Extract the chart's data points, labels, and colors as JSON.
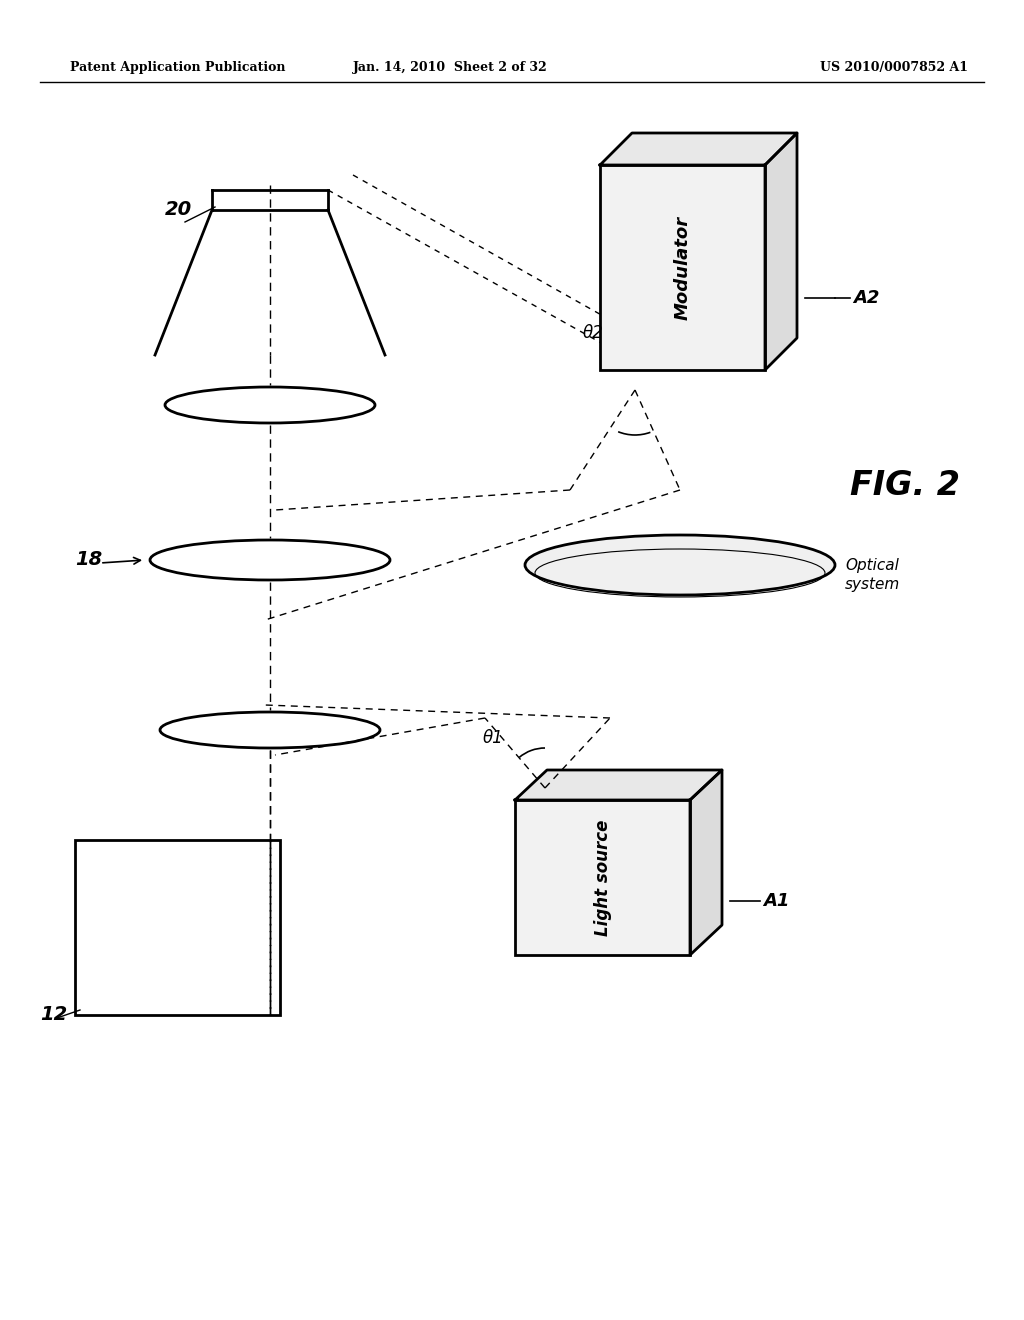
{
  "bg_color": "#ffffff",
  "header_left": "Patent Application Publication",
  "header_mid": "Jan. 14, 2010  Sheet 2 of 32",
  "header_right": "US 2010/0007852 A1",
  "fig_label": "FIG. 2",
  "optical_system_label": "Optical\nsystem",
  "label_20": "20",
  "label_18": "18",
  "label_12": "12",
  "label_A1": "A1",
  "label_A2": "A2",
  "label_theta1": "θ1",
  "label_theta2": "θ2",
  "label_light_source": "Light source",
  "label_modulator": "Modulator"
}
